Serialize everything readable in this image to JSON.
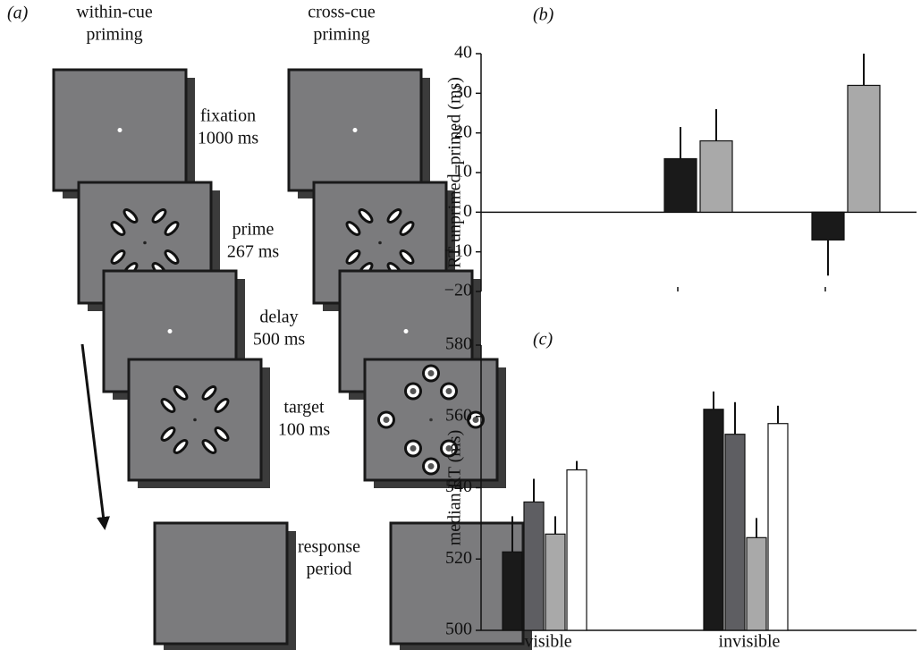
{
  "panel_a": {
    "label": "(a)",
    "columns": [
      [
        "within-cue",
        "priming"
      ],
      [
        "cross-cue",
        "priming"
      ]
    ],
    "stages": [
      [
        "fixation",
        "1000 ms"
      ],
      [
        "prime",
        "267 ms"
      ],
      [
        "delay",
        "500 ms"
      ],
      [
        "target",
        "100 ms"
      ],
      [
        "response",
        "period"
      ]
    ]
  },
  "chart_data": [
    {
      "type": "bar",
      "label": "(b)",
      "ylabel": "RT unprimed–primed (ms)",
      "categories": [
        null,
        null
      ],
      "series": [
        {
          "color": "#1a1a1a",
          "values": [
            13.5,
            -7
          ],
          "errors": [
            8,
            9
          ]
        },
        {
          "color": "#a9a9a9",
          "values": [
            18,
            32
          ],
          "errors": [
            8,
            8
          ]
        }
      ],
      "ylim": [
        -20,
        40
      ],
      "yticks": [
        {
          "value": -20,
          "label": "−20"
        },
        {
          "value": -10,
          "label": "−10"
        },
        0,
        10,
        20,
        30,
        40
      ]
    },
    {
      "type": "bar",
      "label": "(c)",
      "ylabel": "median RT (ms)",
      "categories": [
        "visible",
        "invisible"
      ],
      "series": [
        {
          "color": "#1a1a1a",
          "values": [
            522,
            562
          ],
          "errors": [
            10,
            5
          ]
        },
        {
          "color": "#5e5e62",
          "values": [
            536,
            555
          ],
          "errors": [
            6.5,
            9
          ]
        },
        {
          "color": "#a9a9a9",
          "values": [
            527,
            526
          ],
          "errors": [
            5,
            5.5
          ]
        },
        {
          "color": "#ffffff",
          "values": [
            545,
            558
          ],
          "errors": [
            2.5,
            5
          ]
        }
      ],
      "ylim": [
        500,
        580
      ],
      "yticks": [
        500,
        520,
        540,
        560,
        580
      ]
    }
  ]
}
